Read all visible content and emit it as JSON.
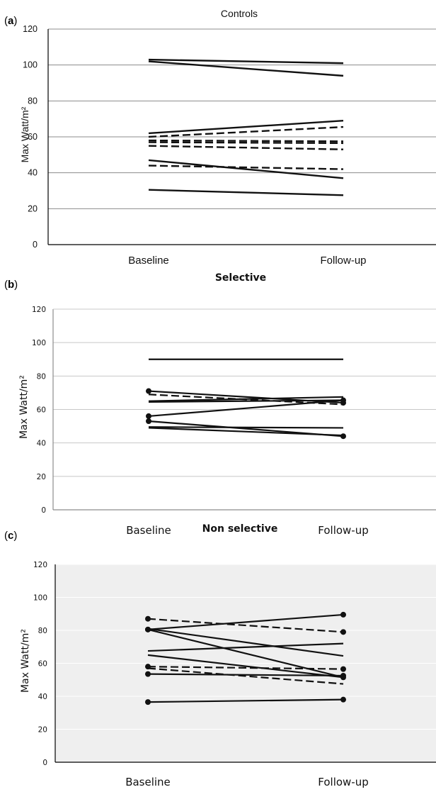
{
  "chart_data": [
    {
      "panel": "(a)",
      "type": "line",
      "title": "Controls",
      "ylabel": "Max Watt/m²",
      "xlabel": "",
      "categories": [
        "Baseline",
        "Follow-up"
      ],
      "ylim": [
        0,
        120
      ],
      "yticks": [
        0,
        20,
        40,
        60,
        80,
        100,
        120
      ],
      "grid": true,
      "series": [
        {
          "values": [
            103,
            101
          ],
          "style": "solid",
          "markers": false
        },
        {
          "values": [
            102,
            94
          ],
          "style": "solid",
          "markers": false
        },
        {
          "values": [
            62,
            69
          ],
          "style": "solid",
          "markers": false
        },
        {
          "values": [
            60,
            65.5
          ],
          "style": "dashed",
          "markers": false
        },
        {
          "values": [
            58,
            57.5
          ],
          "style": "dashed",
          "markers": false
        },
        {
          "values": [
            57,
            56.5
          ],
          "style": "dashed",
          "markers": false
        },
        {
          "values": [
            55,
            53
          ],
          "style": "dashed",
          "markers": false
        },
        {
          "values": [
            47,
            37
          ],
          "style": "solid",
          "markers": false
        },
        {
          "values": [
            44,
            42
          ],
          "style": "dashed",
          "markers": false
        },
        {
          "values": [
            30.5,
            27.5
          ],
          "style": "solid",
          "markers": false
        }
      ]
    },
    {
      "panel": "(b)",
      "type": "line",
      "title": "Selective",
      "ylabel": "Max Watt/m²",
      "xlabel": "",
      "categories": [
        "Baseline",
        "Follow-up"
      ],
      "ylim": [
        0,
        120
      ],
      "yticks": [
        0,
        20,
        40,
        60,
        80,
        100,
        120
      ],
      "grid": true,
      "series": [
        {
          "values": [
            90,
            90
          ],
          "style": "solid",
          "markers": false
        },
        {
          "values": [
            71,
            64
          ],
          "style": "solid",
          "markers": true
        },
        {
          "values": [
            69,
            63
          ],
          "style": "dashed",
          "markers": false
        },
        {
          "values": [
            64.5,
            65.5
          ],
          "style": "solid",
          "markers": false
        },
        {
          "values": [
            65,
            67.5
          ],
          "style": "solid",
          "markers": false
        },
        {
          "values": [
            56,
            65.5
          ],
          "style": "solid",
          "markers": true
        },
        {
          "values": [
            53,
            44
          ],
          "style": "solid",
          "markers": true
        },
        {
          "values": [
            49.5,
            49
          ],
          "style": "solid",
          "markers": false
        },
        {
          "values": [
            49,
            44.5
          ],
          "style": "solid",
          "markers": false
        }
      ]
    },
    {
      "panel": "(c)",
      "type": "line",
      "title": "Non selective",
      "ylabel": "Max Watt/m²",
      "xlabel": "",
      "categories": [
        "Baseline",
        "Follow-up"
      ],
      "ylim": [
        0,
        120
      ],
      "yticks": [
        0,
        20,
        40,
        60,
        80,
        100,
        120
      ],
      "grid": true,
      "series": [
        {
          "values": [
            87,
            79
          ],
          "style": "dashed",
          "markers": true
        },
        {
          "values": [
            80.5,
            89.5
          ],
          "style": "solid",
          "markers": true
        },
        {
          "values": [
            80.5,
            51.5
          ],
          "style": "solid",
          "markers": true
        },
        {
          "values": [
            81,
            64.5
          ],
          "style": "solid",
          "markers": false
        },
        {
          "values": [
            67.5,
            72
          ],
          "style": "solid",
          "markers": false
        },
        {
          "values": [
            65,
            51.5
          ],
          "style": "solid",
          "markers": false
        },
        {
          "values": [
            58,
            56.5
          ],
          "style": "dashed",
          "markers": true
        },
        {
          "values": [
            57,
            47.5
          ],
          "style": "dashed",
          "markers": false
        },
        {
          "values": [
            53.5,
            52.5
          ],
          "style": "solid",
          "markers": true
        },
        {
          "values": [
            36.5,
            38
          ],
          "style": "solid",
          "markers": true
        }
      ]
    }
  ]
}
